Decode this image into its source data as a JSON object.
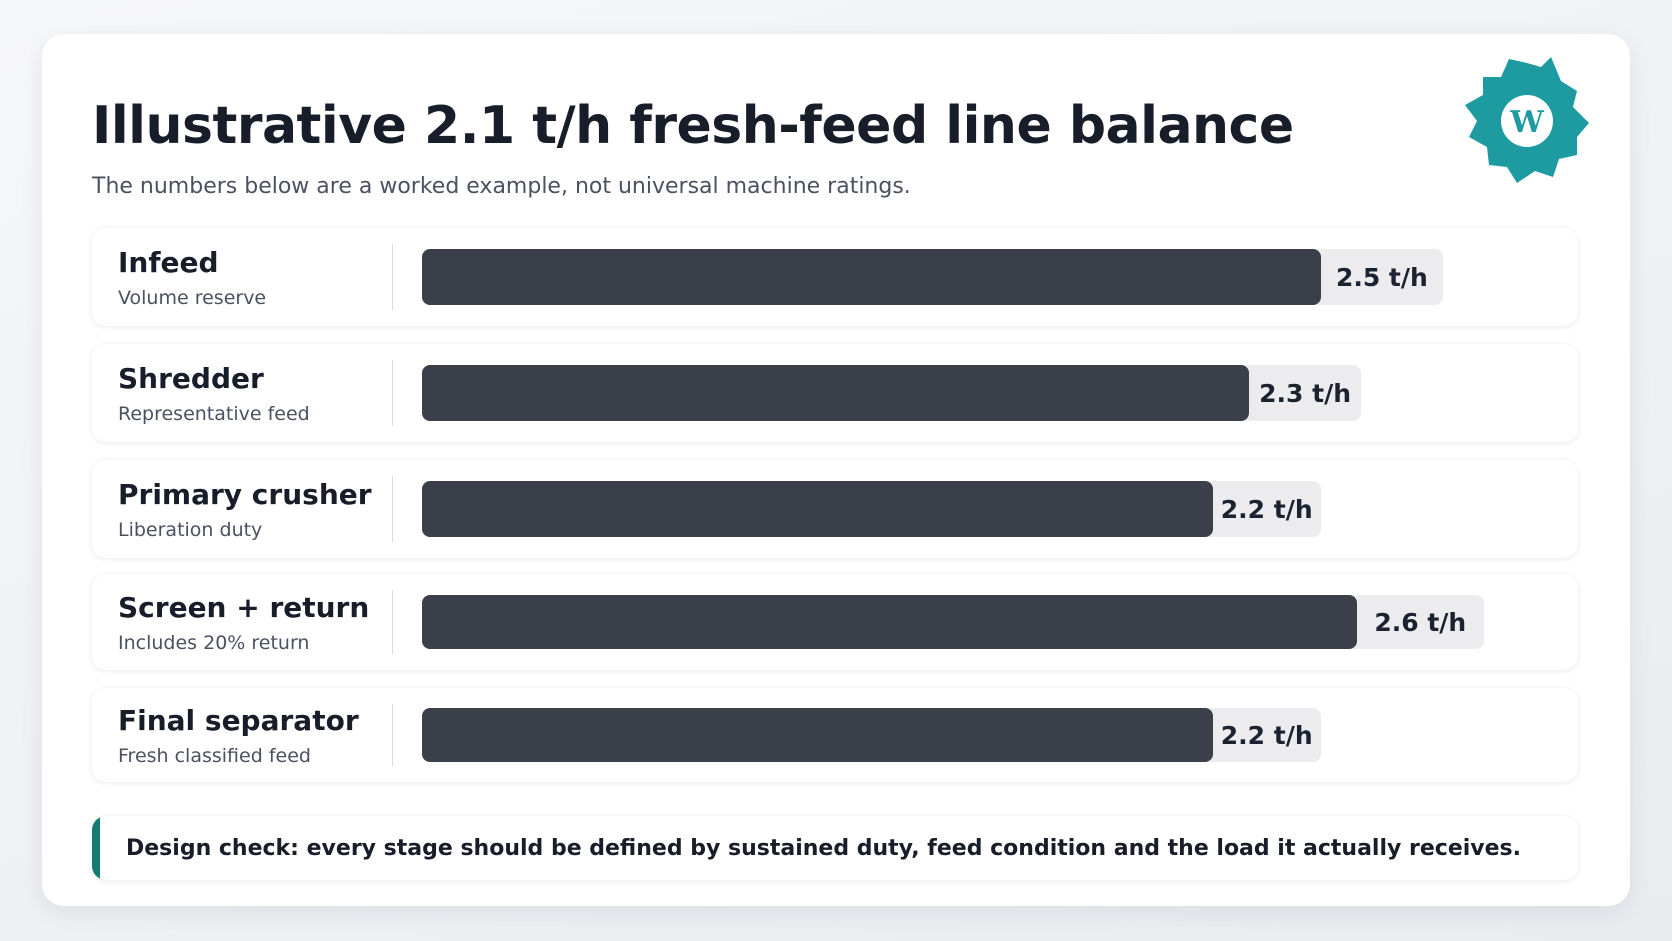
{
  "title": "Illustrative 2.1 t/h fresh-feed line balance",
  "subtitle": "The numbers below are a worked example, not universal machine ratings.",
  "logo_icon": "gear-logo-icon",
  "logo_letter": "W",
  "colors": {
    "bar": "#3a3f4a",
    "track": "#ececee",
    "accent": "#137a74",
    "logo": "#1d9ba0"
  },
  "chart_data": {
    "type": "bar",
    "orientation": "horizontal",
    "unit": "t/h",
    "categories": [
      "Infeed",
      "Shredder",
      "Primary crusher",
      "Screen + return",
      "Final separator"
    ],
    "subtitles": [
      "Volume reserve",
      "Representative feed",
      "Liberation duty",
      "Includes 20% return",
      "Fresh classified feed"
    ],
    "values": [
      2.5,
      2.3,
      2.2,
      2.6,
      2.2
    ],
    "value_labels": [
      "2.5 t/h",
      "2.3 t/h",
      "2.2 t/h",
      "2.6 t/h",
      "2.2 t/h"
    ],
    "xlim": [
      0,
      2.6
    ]
  },
  "note": "Design check: every stage should be defined by sustained duty, feed condition and the load it actually receives."
}
